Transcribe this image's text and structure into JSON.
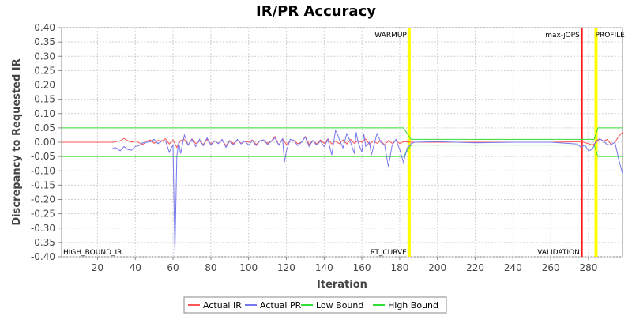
{
  "chart_data": {
    "type": "line",
    "title": "IR/PR Accuracy",
    "xlabel": "Iteration",
    "ylabel": "Discrepancy to Requested IR",
    "xlim": [
      1,
      298
    ],
    "ylim": [
      -0.4,
      0.4
    ],
    "x_ticks": [
      20,
      40,
      60,
      80,
      100,
      120,
      140,
      160,
      180,
      200,
      220,
      240,
      260,
      280
    ],
    "y_ticks": [
      "0.40",
      "0.35",
      "0.30",
      "0.25",
      "0.20",
      "0.15",
      "0.10",
      "0.05",
      "0.00",
      "-0.05",
      "-0.10",
      "-0.15",
      "-0.20",
      "-0.25",
      "-0.30",
      "-0.35",
      "-0.40"
    ],
    "grid": true,
    "legend_position": "bottom",
    "series": [
      {
        "name": "Actual IR",
        "color": "#ff5555",
        "points": [
          [
            1,
            0
          ],
          [
            28,
            0
          ],
          [
            32,
            0.005
          ],
          [
            34,
            0.013
          ],
          [
            36,
            0.006
          ],
          [
            38,
            0.0
          ],
          [
            40,
            0.005
          ],
          [
            44,
            -0.008
          ],
          [
            46,
            0.004
          ],
          [
            48,
            0.008
          ],
          [
            50,
            -0.004
          ],
          [
            52,
            0.006
          ],
          [
            54,
            0.005
          ],
          [
            56,
            0.012
          ],
          [
            58,
            -0.006
          ],
          [
            60,
            0.008
          ],
          [
            62,
            -0.018
          ],
          [
            64,
            0.006
          ],
          [
            66,
            0.01
          ],
          [
            68,
            -0.01
          ],
          [
            70,
            0.012
          ],
          [
            72,
            -0.005
          ],
          [
            74,
            0.004
          ],
          [
            76,
            -0.008
          ],
          [
            78,
            0.01
          ],
          [
            80,
            -0.006
          ],
          [
            82,
            0.005
          ],
          [
            84,
            -0.004
          ],
          [
            86,
            0.007
          ],
          [
            88,
            -0.012
          ],
          [
            90,
            0.006
          ],
          [
            92,
            -0.005
          ],
          [
            94,
            0.008
          ],
          [
            96,
            -0.004
          ],
          [
            98,
            0.004
          ],
          [
            100,
            0.0
          ],
          [
            102,
            0.008
          ],
          [
            104,
            -0.008
          ],
          [
            106,
            0.005
          ],
          [
            108,
            0.006
          ],
          [
            110,
            -0.004
          ],
          [
            112,
            0.004
          ],
          [
            114,
            0.02
          ],
          [
            116,
            -0.01
          ],
          [
            118,
            0.012
          ],
          [
            120,
            -0.008
          ],
          [
            122,
            0.004
          ],
          [
            124,
            0.006
          ],
          [
            126,
            -0.005
          ],
          [
            128,
            0.0
          ],
          [
            130,
            0.02
          ],
          [
            132,
            -0.008
          ],
          [
            134,
            0.006
          ],
          [
            136,
            -0.006
          ],
          [
            138,
            0.008
          ],
          [
            140,
            -0.004
          ],
          [
            142,
            0.012
          ],
          [
            144,
            -0.006
          ],
          [
            146,
            0.004
          ],
          [
            148,
            -0.005
          ],
          [
            150,
            0.008
          ],
          [
            152,
            -0.006
          ],
          [
            154,
            0.01
          ],
          [
            156,
            -0.004
          ],
          [
            158,
            0.006
          ],
          [
            160,
            0.0
          ],
          [
            162,
            0.012
          ],
          [
            164,
            -0.008
          ],
          [
            166,
            0.005
          ],
          [
            168,
            -0.004
          ],
          [
            170,
            0.006
          ],
          [
            172,
            -0.01
          ],
          [
            174,
            0.006
          ],
          [
            176,
            -0.004
          ],
          [
            178,
            0.008
          ],
          [
            180,
            -0.005
          ],
          [
            182,
            0.002
          ],
          [
            186,
            0.0
          ],
          [
            200,
            0.0
          ],
          [
            220,
            0.0
          ],
          [
            240,
            0.0
          ],
          [
            260,
            0.0
          ],
          [
            276,
            0.002
          ],
          [
            280,
            -0.005
          ],
          [
            282,
            -0.01
          ],
          [
            284,
            -0.002
          ],
          [
            286,
            0.012
          ],
          [
            288,
            0.004
          ],
          [
            290,
            0.01
          ],
          [
            292,
            -0.008
          ],
          [
            294,
            0.0
          ],
          [
            296,
            0.02
          ],
          [
            298,
            0.035
          ]
        ]
      },
      {
        "name": "Actual PR",
        "color": "#7777ee",
        "points": [
          [
            28,
            -0.02
          ],
          [
            30,
            -0.02
          ],
          [
            32,
            -0.03
          ],
          [
            34,
            -0.015
          ],
          [
            36,
            -0.025
          ],
          [
            38,
            -0.028
          ],
          [
            40,
            -0.015
          ],
          [
            42,
            -0.012
          ],
          [
            44,
            -0.002
          ],
          [
            46,
            0.0
          ],
          [
            48,
            0.002
          ],
          [
            50,
            0.01
          ],
          [
            52,
            -0.005
          ],
          [
            54,
            0.004
          ],
          [
            56,
            0.005
          ],
          [
            58,
            -0.035
          ],
          [
            59,
            -0.02
          ],
          [
            60,
            -0.01
          ],
          [
            61,
            -0.39
          ],
          [
            62,
            -0.05
          ],
          [
            63,
            0.0
          ],
          [
            64,
            -0.04
          ],
          [
            66,
            0.025
          ],
          [
            68,
            -0.01
          ],
          [
            70,
            0.01
          ],
          [
            72,
            -0.015
          ],
          [
            74,
            0.01
          ],
          [
            76,
            -0.012
          ],
          [
            78,
            0.015
          ],
          [
            80,
            -0.01
          ],
          [
            82,
            0.005
          ],
          [
            84,
            -0.005
          ],
          [
            86,
            0.01
          ],
          [
            88,
            -0.018
          ],
          [
            90,
            0.005
          ],
          [
            92,
            -0.01
          ],
          [
            94,
            0.01
          ],
          [
            96,
            -0.006
          ],
          [
            98,
            0.004
          ],
          [
            100,
            -0.01
          ],
          [
            102,
            0.006
          ],
          [
            104,
            -0.012
          ],
          [
            106,
            0.005
          ],
          [
            108,
            0.008
          ],
          [
            110,
            -0.008
          ],
          [
            112,
            0.004
          ],
          [
            114,
            0.015
          ],
          [
            116,
            -0.01
          ],
          [
            118,
            0.012
          ],
          [
            119,
            -0.07
          ],
          [
            120,
            -0.03
          ],
          [
            122,
            0.01
          ],
          [
            124,
            0.006
          ],
          [
            126,
            -0.012
          ],
          [
            128,
            0.0
          ],
          [
            130,
            0.018
          ],
          [
            132,
            -0.015
          ],
          [
            134,
            0.006
          ],
          [
            136,
            -0.01
          ],
          [
            138,
            0.004
          ],
          [
            140,
            -0.015
          ],
          [
            142,
            0.01
          ],
          [
            144,
            -0.045
          ],
          [
            146,
            0.04
          ],
          [
            147,
            0.03
          ],
          [
            148,
            0.01
          ],
          [
            150,
            -0.02
          ],
          [
            152,
            0.03
          ],
          [
            154,
            0.0
          ],
          [
            156,
            -0.04
          ],
          [
            157,
            0.035
          ],
          [
            158,
            0.0
          ],
          [
            160,
            -0.035
          ],
          [
            161,
            0.03
          ],
          [
            162,
            -0.015
          ],
          [
            164,
            0.0
          ],
          [
            165,
            -0.045
          ],
          [
            166,
            -0.02
          ],
          [
            168,
            0.03
          ],
          [
            170,
            0.0
          ],
          [
            172,
            -0.01
          ],
          [
            174,
            -0.085
          ],
          [
            176,
            -0.01
          ],
          [
            178,
            0.01
          ],
          [
            180,
            -0.025
          ],
          [
            182,
            -0.07
          ],
          [
            184,
            -0.02
          ],
          [
            186,
            -0.005
          ],
          [
            188,
            0.0
          ],
          [
            200,
            0.002
          ],
          [
            220,
            -0.002
          ],
          [
            240,
            0.0
          ],
          [
            260,
            0.0
          ],
          [
            274,
            -0.006
          ],
          [
            276,
            -0.018
          ],
          [
            278,
            -0.01
          ],
          [
            280,
            -0.03
          ],
          [
            282,
            -0.025
          ],
          [
            284,
            0.005
          ],
          [
            286,
            0.012
          ],
          [
            288,
            0.004
          ],
          [
            290,
            -0.01
          ],
          [
            292,
            -0.008
          ],
          [
            294,
            0.0
          ],
          [
            296,
            -0.06
          ],
          [
            298,
            -0.11
          ]
        ]
      },
      {
        "name": "Low Bound",
        "color": "#33dd33",
        "points": [
          [
            1,
            -0.05
          ],
          [
            182,
            -0.05
          ],
          [
            186,
            -0.01
          ],
          [
            283,
            -0.01
          ],
          [
            285,
            -0.05
          ],
          [
            298,
            -0.05
          ]
        ]
      },
      {
        "name": "High Bound",
        "color": "#33dd33",
        "points": [
          [
            1,
            0.05
          ],
          [
            182,
            0.05
          ],
          [
            186,
            0.01
          ],
          [
            283,
            0.01
          ],
          [
            285,
            0.05
          ],
          [
            298,
            0.05
          ]
        ]
      }
    ],
    "markers": [
      {
        "x": 185,
        "color": "#ffff00",
        "top_label": "WARMUP",
        "bottom_label": "RT_CURVE"
      },
      {
        "x": 276.6,
        "color": "#ff0000",
        "top_label": "max-jOPS",
        "bottom_label": "VALIDATION"
      },
      {
        "x": 284,
        "color": "#ffff00",
        "top_label": "PROFILE",
        "bottom_label": ""
      },
      {
        "x": 1,
        "color": "#ffff00",
        "top_label": "",
        "bottom_label": "HIGH_BOUND_IR"
      }
    ]
  }
}
